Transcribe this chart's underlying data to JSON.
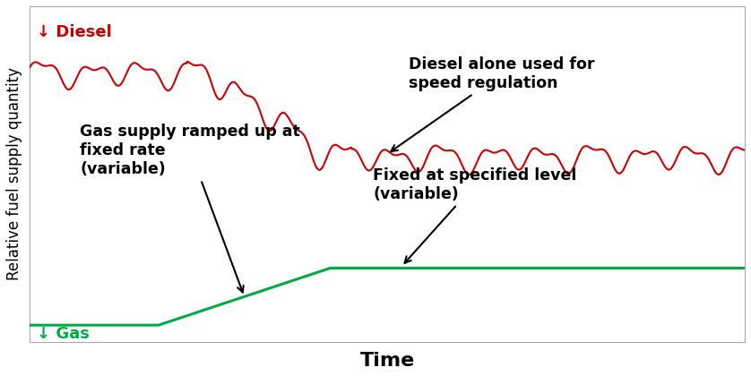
{
  "xlabel": "Time",
  "ylabel": "Relative fuel supply quantity",
  "diesel_color": "#cc0000",
  "gas_color": "#00aa44",
  "annotation_color": "#000000",
  "background_color": "#ffffff",
  "grid_color": "#cccccc",
  "xlabel_fontsize": 16,
  "ylabel_fontsize": 12,
  "annotation_fontsize": 12.5,
  "label_fontsize": 13,
  "diesel_label": "↓ Diesel",
  "gas_label": "↓ Gas",
  "annotation1": "Diesel alone used for\nspeed regulation",
  "annotation2": "Gas supply ramped up at\nfixed rate\n(variable)",
  "annotation3": "Fixed at specified level\n(variable)",
  "xlim": [
    0,
    100
  ],
  "ylim": [
    0,
    100
  ],
  "diesel_high_level": 80,
  "diesel_low_level": 55,
  "diesel_transition_start": 22,
  "diesel_transition_end": 45,
  "gas_ramp_start": 18,
  "gas_ramp_end": 42,
  "gas_high_level": 22,
  "gas_low_level": 5
}
